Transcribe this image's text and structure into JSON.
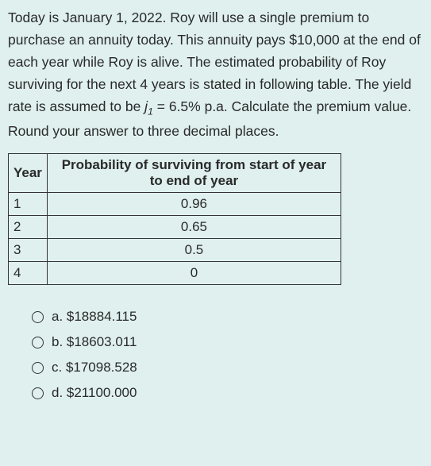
{
  "question": {
    "line1": "Today is January 1, 2022. Roy will use a single premium to purchase an annuity today. This annuity pays $10,000 at the end of each year while Roy is alive. The estimated probability of Roy surviving for the next 4 years is stated in following table. The yield rate is assumed to be ",
    "variable": "j",
    "subscript": "1",
    "line2": " = 6.5% p.a. Calculate the premium value. Round your answer to three decimal places."
  },
  "table": {
    "headers": {
      "year": "Year",
      "prob": "Probability of surviving from start of year to end of year"
    },
    "rows": [
      {
        "year": "1",
        "prob": "0.96"
      },
      {
        "year": "2",
        "prob": "0.65"
      },
      {
        "year": "3",
        "prob": "0.5"
      },
      {
        "year": "4",
        "prob": "0"
      }
    ]
  },
  "options": {
    "a": "a. $18884.115",
    "b": "b. $18603.011",
    "c": "c. $17098.528",
    "d": "d. $21100.000"
  },
  "styling": {
    "background_color": "#dff0ef",
    "text_color": "#2a2a2a",
    "border_color": "#333333",
    "body_fontsize": 17.5,
    "table_fontsize": 17,
    "option_fontsize": 17,
    "line_height": 1.6
  }
}
